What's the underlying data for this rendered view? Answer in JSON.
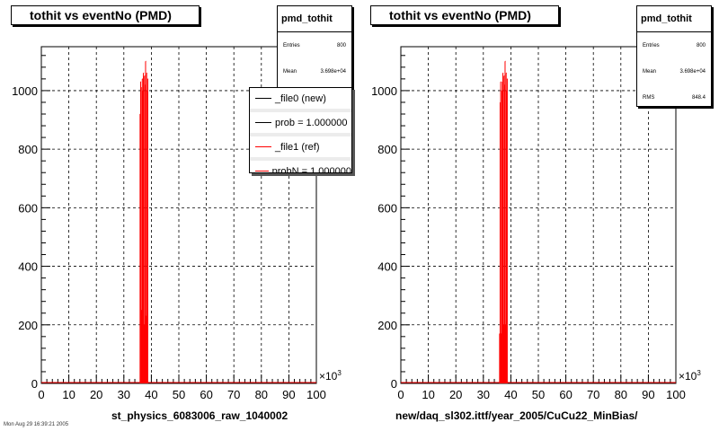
{
  "charts": [
    {
      "title": "tothit vs eventNo (PMD)",
      "stats": {
        "name": "pmd_tothit",
        "rows": [
          {
            "label": "Entries",
            "value": "800"
          },
          {
            "label": "Mean",
            "value": "3.698e+04"
          }
        ]
      },
      "legend": [
        {
          "label": "_file0 (new)",
          "color": "#000000"
        },
        {
          "label": "prob = 1.000000",
          "color": "#000000"
        },
        {
          "label": "_file1 (ref)",
          "color": "#ff0000"
        },
        {
          "label": "probN = 1.000000",
          "color": "#ff0000"
        }
      ],
      "xlabel": "st_physics_6083006_raw_1040002",
      "x_exponent": "3"
    },
    {
      "title": "tothit vs eventNo (PMD)",
      "stats": {
        "name": "pmd_tothit",
        "rows": [
          {
            "label": "Entries",
            "value": "800"
          },
          {
            "label": "Mean",
            "value": "3.698e+04"
          },
          {
            "label": "RMS",
            "value": "848.4"
          }
        ]
      },
      "xlabel": "new/daq_sl302.ittf/year_2005/CuCu22_MinBias/",
      "x_exponent": "3"
    }
  ],
  "footer": "Mon Aug 29 16:39:21 2005",
  "chart_data": [
    {
      "type": "bar",
      "title": "tothit vs eventNo (PMD)",
      "xlabel": "st_physics_6083006_raw_1040002",
      "ylabel": "",
      "xlim": [
        0,
        100
      ],
      "ylim": [
        0,
        1150
      ],
      "x_unit_multiplier": "x10^3",
      "xticks": [
        0,
        10,
        20,
        30,
        40,
        50,
        60,
        70,
        80,
        90,
        100
      ],
      "yticks": [
        0,
        200,
        400,
        600,
        800,
        1000
      ],
      "grid": true,
      "legend_position": "top-right",
      "series": [
        {
          "name": "_file1 (ref)",
          "color": "#ff0000",
          "x": [
            35.9,
            36.1,
            36.3,
            36.5,
            36.7,
            36.9,
            37.1,
            37.3,
            37.5,
            37.7,
            37.9,
            38.1,
            38.3,
            38.5,
            38.7,
            38.9
          ],
          "y": [
            920,
            1030,
            1010,
            250,
            1040,
            1000,
            1060,
            200,
            1050,
            1020,
            1100,
            230,
            1060,
            1000,
            1040,
            0
          ]
        },
        {
          "name": "_file0 (new)",
          "color": "#000000",
          "x": [],
          "y": []
        }
      ]
    },
    {
      "type": "bar",
      "title": "tothit vs eventNo (PMD)",
      "xlabel": "new/daq_sl302.ittf/year_2005/CuCu22_MinBias/",
      "ylabel": "",
      "xlim": [
        0,
        100
      ],
      "ylim": [
        0,
        1150
      ],
      "x_unit_multiplier": "x10^3",
      "xticks": [
        0,
        10,
        20,
        30,
        40,
        50,
        60,
        70,
        80,
        90,
        100
      ],
      "yticks": [
        0,
        200,
        400,
        600,
        800,
        1000
      ],
      "grid": true,
      "series": [
        {
          "color": "#ff0000",
          "x": [
            35.9,
            36.1,
            36.3,
            36.5,
            36.7,
            36.9,
            37.1,
            37.3,
            37.5,
            37.7,
            37.9,
            38.1,
            38.3,
            38.5,
            38.7,
            38.9
          ],
          "y": [
            170,
            960,
            1030,
            170,
            1000,
            1030,
            1060,
            200,
            1050,
            1020,
            1100,
            200,
            1060,
            1000,
            1040,
            0
          ]
        }
      ]
    }
  ]
}
